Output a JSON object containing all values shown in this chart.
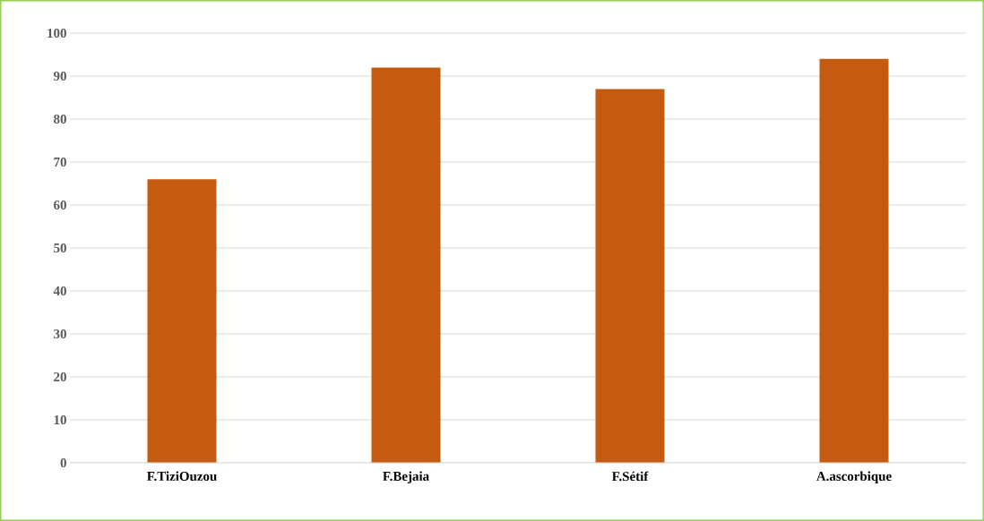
{
  "chart_data": {
    "type": "bar",
    "categories": [
      "F.TiziOuzou",
      "F.Bejaia",
      "F.Sétif",
      "A.ascorbique"
    ],
    "values": [
      66,
      92,
      87,
      94
    ],
    "color": "#c55a11",
    "ylim": [
      0,
      100
    ],
    "yticks": [
      0,
      10,
      20,
      30,
      40,
      50,
      60,
      70,
      80,
      90,
      100
    ],
    "grid": "y"
  }
}
